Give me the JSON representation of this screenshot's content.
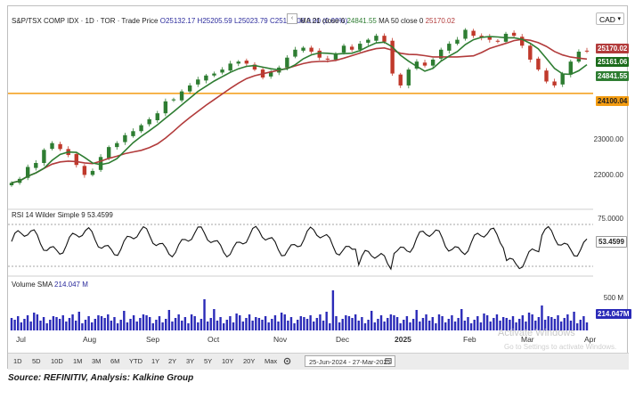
{
  "header": {
    "symbol": "S&P/TSX COMP IDX · 1D · TOR · Trade Price",
    "open": "O25132.17",
    "high": "H25205.59",
    "low": "L25023.79",
    "close": "C25161.06",
    "change": "0.00 (0.00%)",
    "ma21_label": "MA 21 close 0",
    "ma21_value": "24841.55",
    "ma50_label": "MA 50 close 0",
    "ma50_value": "25170.02",
    "collapse_icon": "chevron-left-icon"
  },
  "currency": "CAD",
  "price_axis": {
    "ticks": [
      "23000.00",
      "22000.00"
    ],
    "tags": {
      "ma50": "25170.02",
      "last": "25161.06",
      "ma21": "24841.55",
      "hline": "24100.04"
    },
    "colors": {
      "ma50": "#b23b3b",
      "last": "#1b6b1b",
      "ma21": "#2e7d32",
      "hline": "#f39c12",
      "up": "#2e7d32",
      "down": "#c0392b"
    }
  },
  "rsi": {
    "legend": "RSI 14 Wilder Simple 9",
    "value_legend": "53.4599",
    "ticks": [
      "75.0000"
    ],
    "tag": "53.4599"
  },
  "volume": {
    "legend": "Volume SMA",
    "value_legend": "214.047 M",
    "ticks": [
      "500 M"
    ],
    "tag": "214.047M",
    "bar_color": "#2b2bb8"
  },
  "x_axis": [
    "Jul",
    "Aug",
    "Sep",
    "Oct",
    "Nov",
    "Dec",
    "2025",
    "Feb",
    "Mar",
    "Apr"
  ],
  "toolbar": {
    "periods": [
      "1D",
      "5D",
      "10D",
      "1M",
      "3M",
      "6M",
      "YTD",
      "1Y",
      "2Y",
      "3Y",
      "5Y",
      "10Y",
      "20Y",
      "Max"
    ],
    "settings_icon": "settings-icon",
    "date_range": "25-Jun-2024 - 27-Mar-2025",
    "calendar_icon": "calendar-icon"
  },
  "watermark": {
    "line1": "Activate Windows",
    "line2": "Go to Settings to activate Windows."
  },
  "source": "Source: REFINITIV, Analysis: Kalkine Group",
  "chart_data": {
    "type": "candlestick",
    "instrument": "S&P/TSX COMP IDX",
    "x_range": [
      "2024-06-25",
      "2025-03-27"
    ],
    "y_reference": [
      {
        "value": 24100.04,
        "color": "#f39c12"
      }
    ],
    "close_series": [
      21850,
      21950,
      22250,
      22350,
      22680,
      22850,
      22700,
      22550,
      22300,
      22050,
      22150,
      22500,
      22750,
      22850,
      23050,
      23150,
      23300,
      23450,
      23600,
      23900,
      23950,
      24150,
      24300,
      24450,
      24550,
      24600,
      24700,
      24850,
      24900,
      24850,
      24700,
      24500,
      24650,
      24750,
      25000,
      25200,
      25250,
      25150,
      25000,
      24950,
      25100,
      25300,
      25200,
      25350,
      25450,
      25550,
      25400,
      24600,
      24300,
      24700,
      24900,
      24800,
      24950,
      25200,
      25350,
      25450,
      25700,
      25550,
      25500,
      25450,
      25400,
      25600,
      25550,
      25300,
      24950,
      24700,
      24400,
      24300,
      24600,
      24900,
      25150,
      25161.06
    ],
    "ma21_last": 24841.55,
    "ma50_last": 25170.02,
    "rsi_last": 53.4599,
    "volume_sma_last": 214.047
  }
}
